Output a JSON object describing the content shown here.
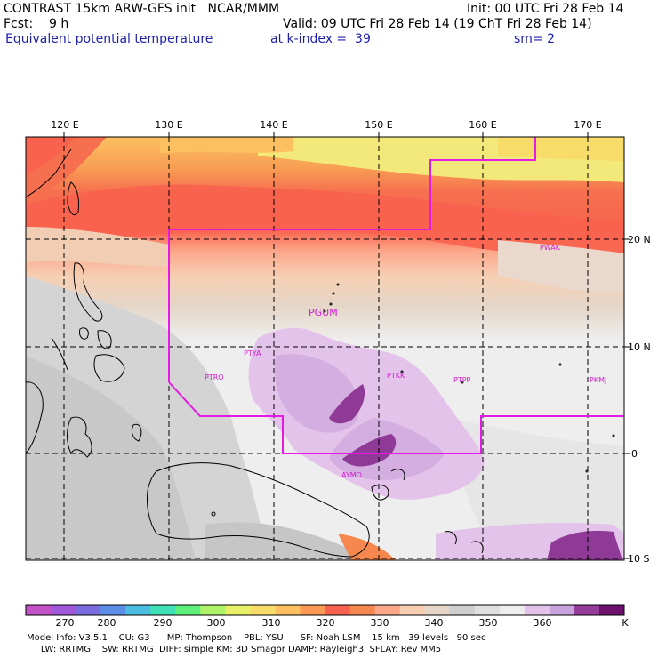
{
  "header": {
    "line1_left": "CONTRAST 15km ARW-GFS init   NCAR/MMM",
    "line1_right": "Init: 00 UTC Fri 28 Feb 14",
    "line2_left": "Fcst:    9 h",
    "line2_right": "Valid: 09 UTC Fri 28 Feb 14 (19 ChT Fri 28 Feb 14)",
    "line3_field": "Equivalent potential temperature",
    "line3_level": "at k-index =  39",
    "line3_smooth": "sm= 2"
  },
  "map": {
    "lon_labels": [
      "120 E",
      "130 E",
      "140 E",
      "150 E",
      "160 E",
      "170 E"
    ],
    "lat_labels": [
      "20 N",
      "10 N",
      "0",
      "10 S"
    ],
    "stations": [
      "PGUM",
      "PTRO",
      "PTYA",
      "PTKK",
      "PTPP",
      "PKMJ",
      "PWAK",
      "AYMO"
    ]
  },
  "colorbar": {
    "unit": "K",
    "tick_labels": [
      "270",
      "280",
      "290",
      "300",
      "310",
      "320",
      "330",
      "340",
      "350",
      "360"
    ],
    "colors": [
      "#c252c8",
      "#a058d8",
      "#7c6ce0",
      "#5b8fe6",
      "#4bbde0",
      "#3fe0b6",
      "#5ef07a",
      "#aef268",
      "#e8f068",
      "#f8dc6a",
      "#fcc060",
      "#fc9a55",
      "#f8624e",
      "#f6884f",
      "#fca78a",
      "#f6cfb3",
      "#e5d6c8",
      "#cfcfcf",
      "#e0e0e0",
      "#eeeeee",
      "#e3c3ea",
      "#c9a3dc",
      "#953d9d",
      "#6d106e"
    ]
  },
  "model_info": {
    "line1": "Model Info: V3.5.1    CU: G3      MP: Thompson    PBL: YSU      SF: Noah LSM    15 km   39 levels   90 sec",
    "line2": "     LW: RRTMG    SW: RRTMG  DIFF: simple KM: 3D Smagor DAMP: Rayleigh3  SFLAY: Rev MM5"
  }
}
